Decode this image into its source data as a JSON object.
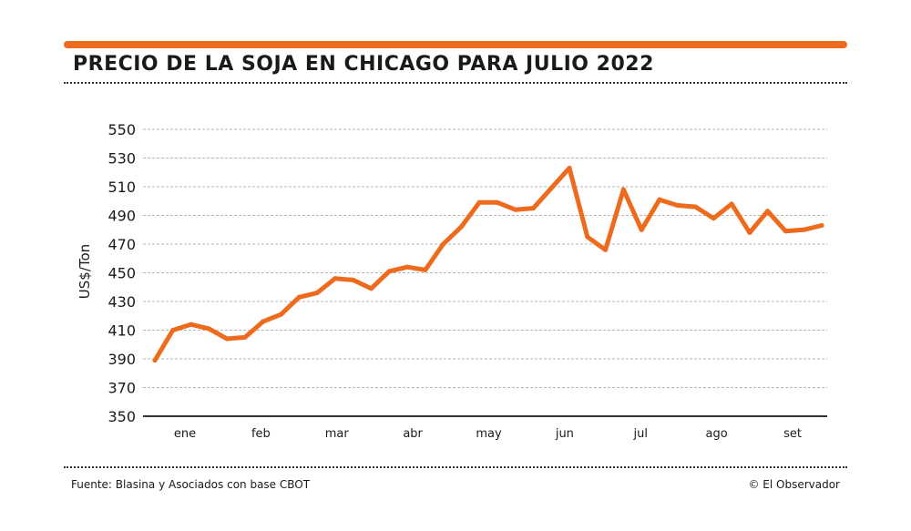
{
  "chart_data": {
    "type": "line",
    "title": "PRECIO DE LA SOJA EN CHICAGO PARA JULIO 2022",
    "xlabel": "",
    "ylabel": "US$/Ton",
    "ylim": [
      350,
      550
    ],
    "yticks": [
      350,
      370,
      390,
      410,
      430,
      450,
      470,
      490,
      510,
      530,
      550
    ],
    "month_labels": [
      "ene",
      "feb",
      "mar",
      "abr",
      "may",
      "jun",
      "jul",
      "ago",
      "set"
    ],
    "grid": true,
    "color": "#ee6a1c",
    "series": [
      {
        "name": "Precio",
        "values": [
          389,
          410,
          414,
          411,
          404,
          405,
          416,
          421,
          433,
          436,
          446,
          445,
          439,
          451,
          454,
          452,
          470,
          482,
          499,
          499,
          494,
          495,
          509,
          523,
          475,
          466,
          508,
          480,
          501,
          497,
          496,
          488,
          498,
          478,
          493,
          479,
          480,
          483
        ]
      }
    ]
  },
  "footer": {
    "source": "Fuente: Blasina y Asociados con base CBOT",
    "credit": "© El Observador"
  }
}
